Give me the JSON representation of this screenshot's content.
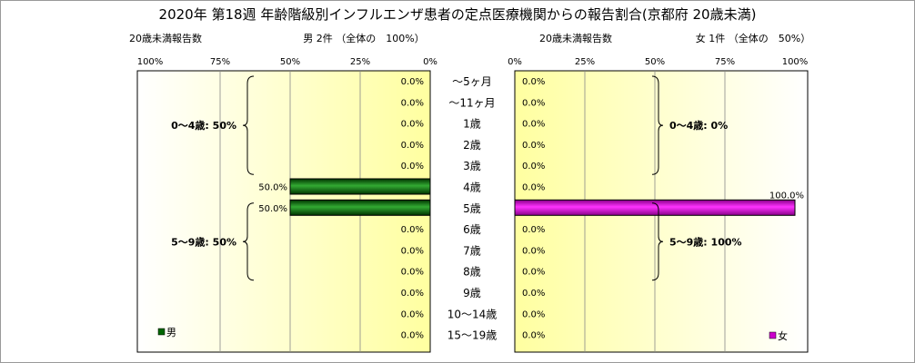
{
  "chart_data": {
    "type": "bar",
    "title": "2020年 第18週 年齢階級別インフルエンザ患者の定点医療機関からの報告割合(京都府 20歳未満)",
    "categories": [
      "～5ヶ月",
      "～11ヶ月",
      "1歳",
      "2歳",
      "3歳",
      "4歳",
      "5歳",
      "6歳",
      "7歳",
      "8歳",
      "9歳",
      "10～14歳",
      "15～19歳"
    ],
    "axis_ticks": [
      "100%",
      "75%",
      "50%",
      "25%",
      "0%"
    ],
    "axis_ticks_right": [
      "0%",
      "25%",
      "50%",
      "75%",
      "100%"
    ],
    "xlim": [
      0,
      100
    ],
    "panels": [
      {
        "side": "left",
        "header_left": "20歳未満報告数",
        "header": "男 2件 （全体の　100%）",
        "legend": "男",
        "color": "#006600",
        "values": [
          0,
          0,
          0,
          0,
          0,
          50,
          50,
          0,
          0,
          0,
          0,
          0,
          0
        ],
        "labels": [
          "0.0%",
          "0.0%",
          "0.0%",
          "0.0%",
          "0.0%",
          "50.0%",
          "50.0%",
          "0.0%",
          "0.0%",
          "0.0%",
          "0.0%",
          "0.0%",
          "0.0%"
        ],
        "groups": [
          {
            "label": "0～4歳: 50%",
            "from": 0,
            "to": 5
          },
          {
            "label": "5～9歳: 50%",
            "from": 6,
            "to": 10
          }
        ]
      },
      {
        "side": "right",
        "header_left": "20歳未満報告数",
        "header": "女 1件 （全体の　50%）",
        "legend": "女",
        "color": "#cc00cc",
        "values": [
          0,
          0,
          0,
          0,
          0,
          0,
          100,
          0,
          0,
          0,
          0,
          0,
          0
        ],
        "labels": [
          "0.0%",
          "0.0%",
          "0.0%",
          "0.0%",
          "0.0%",
          "0.0%",
          "100.0%",
          "0.0%",
          "0.0%",
          "0.0%",
          "0.0%",
          "0.0%",
          "0.0%"
        ],
        "groups": [
          {
            "label": "0～4歳: 0%",
            "from": 0,
            "to": 5
          },
          {
            "label": "5～9歳: 100%",
            "from": 6,
            "to": 10
          }
        ]
      }
    ]
  }
}
